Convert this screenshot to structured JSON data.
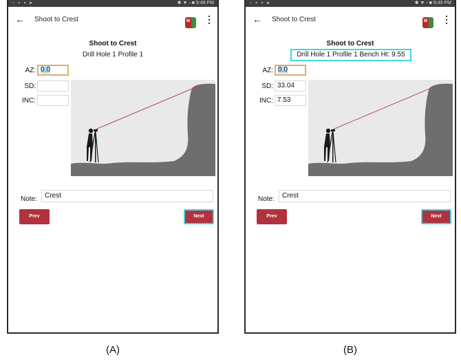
{
  "panels": [
    {
      "caption": "(A)",
      "status": {
        "left": "▫ ▪ ▪ ▸",
        "right": "✱ ▼ ▫ ■ 9:49 PM"
      },
      "appbar": {
        "title": "Shoot to Crest",
        "logo_text": "M"
      },
      "heading": "Shoot to Crest",
      "subheading": "Drill Hole 1  Profile 1",
      "fields": [
        {
          "label": "AZ:",
          "value": "0.0"
        },
        {
          "label": "SD:",
          "value": ""
        },
        {
          "label": "INC:",
          "value": ""
        }
      ],
      "note": {
        "label": "Note:",
        "value": "Crest"
      },
      "buttons": {
        "prev": "Prev",
        "next": "Next"
      }
    },
    {
      "caption": "(B)",
      "status": {
        "left": "▫ ▪ ▪ ▸",
        "right": "✱ ▼ ▫ ■ 9:49 PM"
      },
      "appbar": {
        "title": "Shoot to Crest",
        "logo_text": "M"
      },
      "heading": "Shoot to Crest",
      "subheading": "Drill Hole 1  Profile 1  Bench Ht: 9.55",
      "fields": [
        {
          "label": "AZ:",
          "value": "0.0"
        },
        {
          "label": "SD:",
          "value": "33.04"
        },
        {
          "label": "INC:",
          "value": "7.53"
        }
      ],
      "note": {
        "label": "Note:",
        "value": "Crest"
      },
      "buttons": {
        "prev": "Prev",
        "next": "Next"
      }
    }
  ],
  "colors": {
    "button": "#b1313d",
    "highlight": "#3fd6e6",
    "active_field": "#d9b06c",
    "laser_line": "#b04a5a",
    "terrain": "#6e6e6e"
  },
  "icons": {
    "back": "arrow-left-icon",
    "menu": "kebab-menu-icon",
    "logo": "app-logo-icon"
  }
}
